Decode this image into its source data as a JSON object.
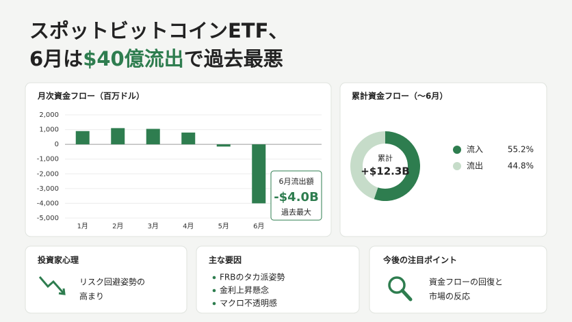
{
  "headline": {
    "line1": "スポットビットコインETF、",
    "line2_before": "6月は",
    "line2_highlight": "$40億流出",
    "line2_after": "で過去最悪"
  },
  "chart_data": [
    {
      "type": "bar",
      "title": "月次資金フロー（百万ドル）",
      "categories": [
        "1月",
        "2月",
        "3月",
        "4月",
        "5月",
        "6月"
      ],
      "values": [
        900,
        1100,
        1050,
        800,
        -150,
        -4000
      ],
      "value_labels": [
        null,
        null,
        null,
        null,
        null,
        "-$4.0B"
      ],
      "annotation_title": "6月流出額",
      "annotation_note": "過去最大",
      "color": "#2e7d4f",
      "ylim": [
        -5000,
        2000
      ],
      "yticks": [
        {
          "value": 2000,
          "label": "2,000"
        },
        {
          "value": 1000,
          "label": "1,000"
        },
        0,
        {
          "value": -1000,
          "label": "-1,000"
        },
        {
          "value": -2000,
          "label": "-2,000"
        },
        {
          "value": -3000,
          "label": "-3,000"
        },
        {
          "value": -4000,
          "label": "-4,000"
        },
        {
          "value": -5000,
          "label": "-5,000"
        }
      ],
      "grid": true
    },
    {
      "type": "pie",
      "title": "累計資金フロー（〜6月）",
      "categories": [
        "流入",
        "流出"
      ],
      "values": [
        55.2,
        44.8
      ],
      "value_labels": [
        "55.2%",
        "44.8%"
      ],
      "colors": [
        "#2e7d4f",
        "#c6dcc9"
      ],
      "center_label": "累計",
      "center_value": "+$12.3B"
    }
  ],
  "panels": [
    {
      "title": "投資家心理",
      "lines": [
        "リスク回避姿勢の",
        "高まり"
      ]
    },
    {
      "title": "主な要因",
      "bullets": [
        "FRBのタカ派姿勢",
        "金利上昇懸念",
        "マクロ不透明感"
      ]
    },
    {
      "title": "今後の注目ポイント",
      "lines": [
        "資金フローの回復と",
        "市場の反応"
      ]
    }
  ]
}
